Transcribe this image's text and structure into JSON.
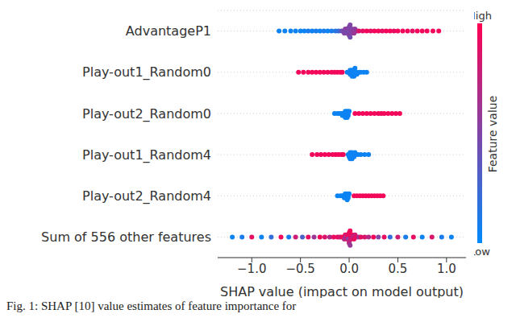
{
  "chart_data": {
    "type": "beeswarm",
    "caption": "Fig. 1: SHAP [10] value estimates of feature importance for",
    "x_label": "SHAP value (impact on model output)",
    "xlim": [
      -1.35,
      1.2
    ],
    "xticks": [
      {
        "value": -1,
        "label": "−1.0"
      },
      {
        "value": -0.5,
        "label": "−0.5"
      },
      {
        "value": 0,
        "label": "0.0"
      },
      {
        "value": 0.5,
        "label": "0.5"
      },
      {
        "value": 1,
        "label": "1.0"
      }
    ],
    "grid": true,
    "colorbar": {
      "label": "Feature value",
      "high_label": "High",
      "low_label": "Low",
      "range": [
        0,
        1
      ]
    },
    "rows": [
      {
        "name": "AdvantageP1",
        "shap": [
          -0.72,
          -0.66,
          -0.6,
          -0.55,
          -0.5,
          -0.46,
          -0.42,
          -0.38,
          -0.34,
          -0.3,
          -0.26,
          -0.22,
          -0.18,
          -0.14,
          -0.11,
          -0.08,
          -0.06,
          -0.05,
          -0.04,
          -0.03,
          -0.02,
          -0.02,
          -0.01,
          -0.01,
          0,
          0,
          0,
          0.01,
          0.01,
          0.02,
          0.02,
          0.03,
          0.04,
          0.05,
          0.06,
          0.08,
          0.1,
          0.14,
          0.18,
          0.22,
          0.26,
          0.3,
          0.34,
          0.38,
          0.42,
          0.46,
          0.5,
          0.55,
          0.6,
          0.65,
          0.7,
          0.75,
          0.8,
          0.86,
          0.92
        ],
        "feature_value": [
          0.05,
          0.05,
          0.05,
          0.05,
          0.05,
          0.05,
          0.1,
          0.05,
          0.1,
          0.05,
          0.1,
          0.05,
          0.1,
          0.15,
          0.2,
          0.4,
          0.45,
          0.5,
          0.55,
          0.45,
          0.5,
          0.55,
          0.5,
          0.45,
          0.5,
          0.55,
          0.5,
          0.45,
          0.5,
          0.55,
          0.5,
          0.5,
          0.55,
          0.6,
          0.55,
          0.6,
          0.85,
          0.9,
          0.95,
          0.9,
          0.95,
          0.95,
          0.9,
          0.95,
          0.95,
          0.9,
          0.95,
          0.95,
          0.95,
          0.9,
          0.95,
          0.95,
          0.95,
          0.95,
          0.95
        ]
      },
      {
        "name": "Play-out1_Random0",
        "shap": [
          -0.52,
          -0.47,
          -0.42,
          -0.38,
          -0.34,
          -0.3,
          -0.26,
          -0.22,
          -0.18,
          -0.15,
          -0.12,
          -0.09,
          -0.07,
          -0.02,
          0,
          0.01,
          0.01,
          0.02,
          0.02,
          0.03,
          0.03,
          0.04,
          0.04,
          0.05,
          0.05,
          0.06,
          0.07,
          0.08,
          0.1,
          0.12,
          0.15,
          0.18
        ],
        "feature_value": [
          0.95,
          0.95,
          0.95,
          0.95,
          0.95,
          0.95,
          0.95,
          0.95,
          0.95,
          0.95,
          0.95,
          0.95,
          0.95,
          0.05,
          0.05,
          0.05,
          0.05,
          0.05,
          0.05,
          0.05,
          0.05,
          0.05,
          0.05,
          0.05,
          0.05,
          0.05,
          0.05,
          0.05,
          0.05,
          0.05,
          0.05,
          0.05
        ]
      },
      {
        "name": "Play-out2_Random0",
        "shap": [
          -0.15,
          -0.12,
          -0.1,
          -0.08,
          -0.07,
          -0.06,
          -0.05,
          -0.04,
          -0.04,
          -0.03,
          -0.03,
          -0.02,
          -0.02,
          -0.01,
          -0.01,
          0,
          0.06,
          0.1,
          0.14,
          0.18,
          0.22,
          0.26,
          0.3,
          0.33,
          0.36,
          0.4,
          0.44,
          0.48,
          0.52
        ],
        "feature_value": [
          0.05,
          0.05,
          0.05,
          0.05,
          0.05,
          0.05,
          0.05,
          0.05,
          0.05,
          0.05,
          0.05,
          0.05,
          0.05,
          0.05,
          0.05,
          0.05,
          0.95,
          0.95,
          0.95,
          0.95,
          0.95,
          0.95,
          0.95,
          0.95,
          0.95,
          0.95,
          0.95,
          0.95,
          0.95
        ]
      },
      {
        "name": "Play-out1_Random4",
        "shap": [
          -0.38,
          -0.33,
          -0.29,
          -0.25,
          -0.21,
          -0.17,
          -0.14,
          -0.11,
          -0.08,
          -0.06,
          -0.01,
          0,
          0.01,
          0.01,
          0.02,
          0.02,
          0.03,
          0.03,
          0.04,
          0.05,
          0.06,
          0.07,
          0.09,
          0.12,
          0.16,
          0.2
        ],
        "feature_value": [
          0.95,
          0.95,
          0.95,
          0.95,
          0.95,
          0.95,
          0.95,
          0.95,
          0.95,
          0.95,
          0.05,
          0.05,
          0.05,
          0.05,
          0.05,
          0.05,
          0.05,
          0.05,
          0.05,
          0.05,
          0.05,
          0.05,
          0.05,
          0.05,
          0.05,
          0.05
        ]
      },
      {
        "name": "Play-out2_Random4",
        "shap": [
          -0.12,
          -0.09,
          -0.07,
          -0.06,
          -0.05,
          -0.04,
          -0.03,
          -0.03,
          -0.02,
          -0.02,
          -0.01,
          -0.01,
          0,
          0.05,
          0.08,
          0.11,
          0.14,
          0.17,
          0.2,
          0.23,
          0.26,
          0.29,
          0.32,
          0.35
        ],
        "feature_value": [
          0.05,
          0.05,
          0.05,
          0.05,
          0.05,
          0.05,
          0.05,
          0.05,
          0.05,
          0.05,
          0.05,
          0.05,
          0.05,
          0.95,
          0.95,
          0.95,
          0.95,
          0.95,
          0.95,
          0.95,
          0.95,
          0.95,
          0.95,
          0.95
        ]
      },
      {
        "name": "Sum of 556 other features",
        "shap": [
          -1.2,
          -1.1,
          -1.0,
          -0.9,
          -0.8,
          -0.7,
          -0.62,
          -0.55,
          -0.48,
          -0.42,
          -0.36,
          -0.3,
          -0.25,
          -0.2,
          -0.16,
          -0.12,
          -0.1,
          -0.08,
          -0.06,
          -0.05,
          -0.04,
          -0.03,
          -0.02,
          -0.02,
          -0.01,
          -0.01,
          0,
          0,
          0,
          0,
          0.01,
          0.01,
          0.02,
          0.02,
          0.03,
          0.04,
          0.05,
          0.06,
          0.08,
          0.1,
          0.12,
          0.16,
          0.2,
          0.25,
          0.3,
          0.36,
          0.42,
          0.5,
          0.58,
          0.66,
          0.75,
          0.85,
          0.95,
          1.05
        ],
        "feature_value": [
          0.05,
          0.1,
          0.9,
          0.05,
          0.2,
          0.95,
          0.1,
          0.8,
          0.3,
          0.9,
          0.6,
          0.95,
          0.85,
          0.7,
          0.9,
          0.95,
          0.8,
          0.9,
          0.95,
          0.7,
          0.9,
          0.6,
          0.95,
          0.85,
          0.9,
          0.5,
          0.95,
          0.8,
          0.9,
          0.7,
          0.95,
          0.6,
          0.9,
          0.85,
          0.95,
          0.7,
          0.9,
          0.8,
          0.95,
          0.6,
          0.9,
          0.85,
          0.7,
          0.95,
          0.5,
          0.9,
          0.2,
          0.8,
          0.1,
          0.9,
          0.05,
          0.85,
          0.1,
          0.05
        ]
      }
    ]
  }
}
